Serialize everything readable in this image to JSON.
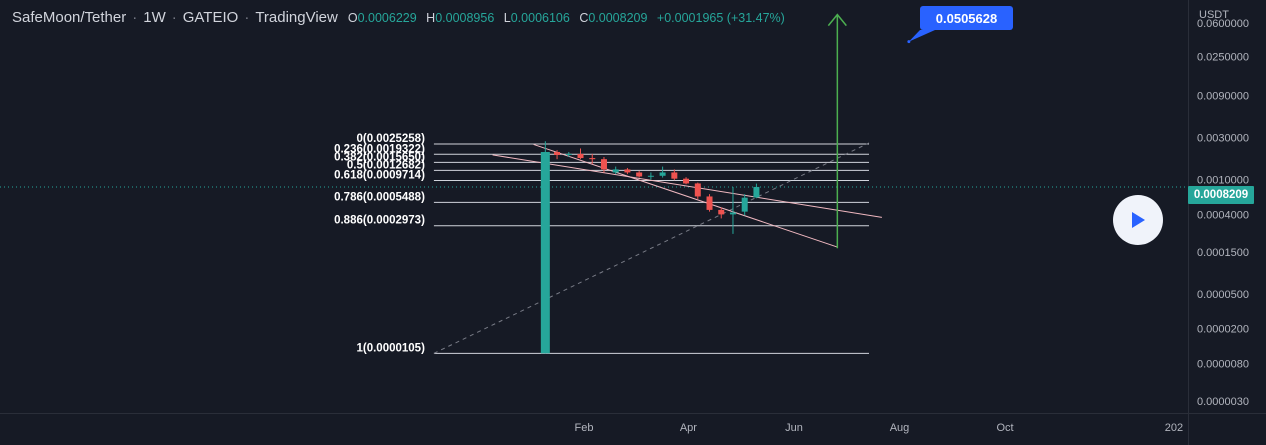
{
  "header": {
    "symbol": "SafeMoon/Tether",
    "interval": "1W",
    "exchange": "GATEIO",
    "source": "TradingView",
    "o_label": "O",
    "open": "0.0006229",
    "h_label": "H",
    "high": "0.0008956",
    "l_label": "L",
    "low": "0.0006106",
    "c_label": "C",
    "close": "0.0008209",
    "change": "+0.0001965 (+31.47%)"
  },
  "axis": {
    "currency": "USDT",
    "last_price": "0.0008209",
    "y_ticks": [
      {
        "label": "0.0600000",
        "v": 0.06
      },
      {
        "label": "0.0250000",
        "v": 0.025
      },
      {
        "label": "0.0090000",
        "v": 0.009
      },
      {
        "label": "0.0030000",
        "v": 0.003
      },
      {
        "label": "0.0010000",
        "v": 0.001
      },
      {
        "label": "0.0004000",
        "v": 0.0004
      },
      {
        "label": "0.0001500",
        "v": 0.00015
      },
      {
        "label": "0.0000500",
        "v": 5e-05
      },
      {
        "label": "0.0000200",
        "v": 2e-05
      },
      {
        "label": "0.0000080",
        "v": 8e-06
      },
      {
        "label": "0.0000030",
        "v": 3e-06
      }
    ],
    "x_ticks": [
      {
        "label": "Feb",
        "week": 3.3
      },
      {
        "label": "Apr",
        "week": 12.2
      },
      {
        "label": "Jun",
        "week": 21.2
      },
      {
        "label": "Aug",
        "week": 30.2
      },
      {
        "label": "Oct",
        "week": 39.2
      },
      {
        "label": "202",
        "week": 53.6
      }
    ]
  },
  "annotations": {
    "target_label": "0.0505628"
  },
  "chart_data": {
    "type": "candlestick",
    "title": "SafeMoon/Tether · 1W · GATEIO",
    "y_scale": "log",
    "ylim": [
      2.2e-06,
      0.11
    ],
    "xlim_weeks": [
      -46.5,
      54.8
    ],
    "colors": {
      "up": "#26a69a",
      "down": "#ef5350",
      "fib": "#d1d4dc",
      "channel": "#f0b8c0",
      "arrow": "#4caf50",
      "trend": "#787b86"
    },
    "candles": [
      {
        "w": 0,
        "o": 1.05e-05,
        "h": 0.00272,
        "l": 1.05e-05,
        "c": 0.00205
      },
      {
        "w": 1,
        "o": 0.00205,
        "h": 0.00215,
        "l": 0.0017,
        "c": 0.0019
      },
      {
        "w": 2,
        "o": 0.0019,
        "h": 0.00205,
        "l": 0.0018,
        "c": 0.00195
      },
      {
        "w": 3,
        "o": 0.00195,
        "h": 0.00225,
        "l": 0.0017,
        "c": 0.00175
      },
      {
        "w": 4,
        "o": 0.00175,
        "h": 0.00195,
        "l": 0.0015,
        "c": 0.0017
      },
      {
        "w": 5,
        "o": 0.0017,
        "h": 0.0018,
        "l": 0.0012,
        "c": 0.0013
      },
      {
        "w": 6,
        "o": 0.0012,
        "h": 0.0014,
        "l": 0.00115,
        "c": 0.0013
      },
      {
        "w": 7,
        "o": 0.0013,
        "h": 0.00135,
        "l": 0.00115,
        "c": 0.0012
      },
      {
        "w": 8,
        "o": 0.0012,
        "h": 0.00125,
        "l": 0.00105,
        "c": 0.00108
      },
      {
        "w": 9,
        "o": 0.00108,
        "h": 0.0012,
        "l": 0.001,
        "c": 0.0011
      },
      {
        "w": 10,
        "o": 0.0011,
        "h": 0.0014,
        "l": 0.00105,
        "c": 0.0012
      },
      {
        "w": 11,
        "o": 0.0012,
        "h": 0.0013,
        "l": 0.00098,
        "c": 0.00102
      },
      {
        "w": 12,
        "o": 0.00102,
        "h": 0.00106,
        "l": 0.00088,
        "c": 0.0009
      },
      {
        "w": 13,
        "o": 0.0009,
        "h": 0.00092,
        "l": 0.0006,
        "c": 0.00064
      },
      {
        "w": 14,
        "o": 0.00064,
        "h": 0.00068,
        "l": 0.00043,
        "c": 0.00045
      },
      {
        "w": 15,
        "o": 0.00045,
        "h": 0.00048,
        "l": 0.00036,
        "c": 0.0004
      },
      {
        "w": 16,
        "o": 0.0004,
        "h": 0.00082,
        "l": 0.00024,
        "c": 0.00042
      },
      {
        "w": 17,
        "o": 0.00043,
        "h": 0.00068,
        "l": 0.00039,
        "c": 0.00062
      },
      {
        "w": 18,
        "o": 0.0006229,
        "h": 0.0008956,
        "l": 0.0006106,
        "c": 0.0008209
      }
    ],
    "fib_levels": [
      {
        "label": "0(0.0025258)",
        "v": 0.0025258
      },
      {
        "label": "0.236(0.0019322)",
        "v": 0.0019322
      },
      {
        "label": "0.382(0.0015650)",
        "v": 0.001565
      },
      {
        "label": "0.5(0.0012682)",
        "v": 0.0012682
      },
      {
        "label": "0.618(0.0009714)",
        "v": 0.0009714
      },
      {
        "label": "0.786(0.0005488)",
        "v": 0.0005488
      },
      {
        "label": "0.886(0.0002973)",
        "v": 0.0002973
      },
      {
        "label": "1(0.0000105)",
        "v": 1.05e-05
      }
    ],
    "fib_range_weeks": [
      -9.5,
      27.6
    ],
    "channel": {
      "upper": [
        [
          -4.5,
          0.0019
        ],
        [
          28.7,
          0.00037
        ]
      ],
      "lower": [
        [
          -1,
          0.0025
        ],
        [
          24.9,
          0.00017
        ]
      ]
    },
    "trendline": [
      [
        -9.5,
        1.05e-05
      ],
      [
        27.6,
        0.0026
      ]
    ],
    "arrow": {
      "w": 24.9,
      "from": 0.000165,
      "to": 0.075
    },
    "target": {
      "w": 31,
      "v": 0.0505628
    },
    "last_price": 0.0008209
  }
}
